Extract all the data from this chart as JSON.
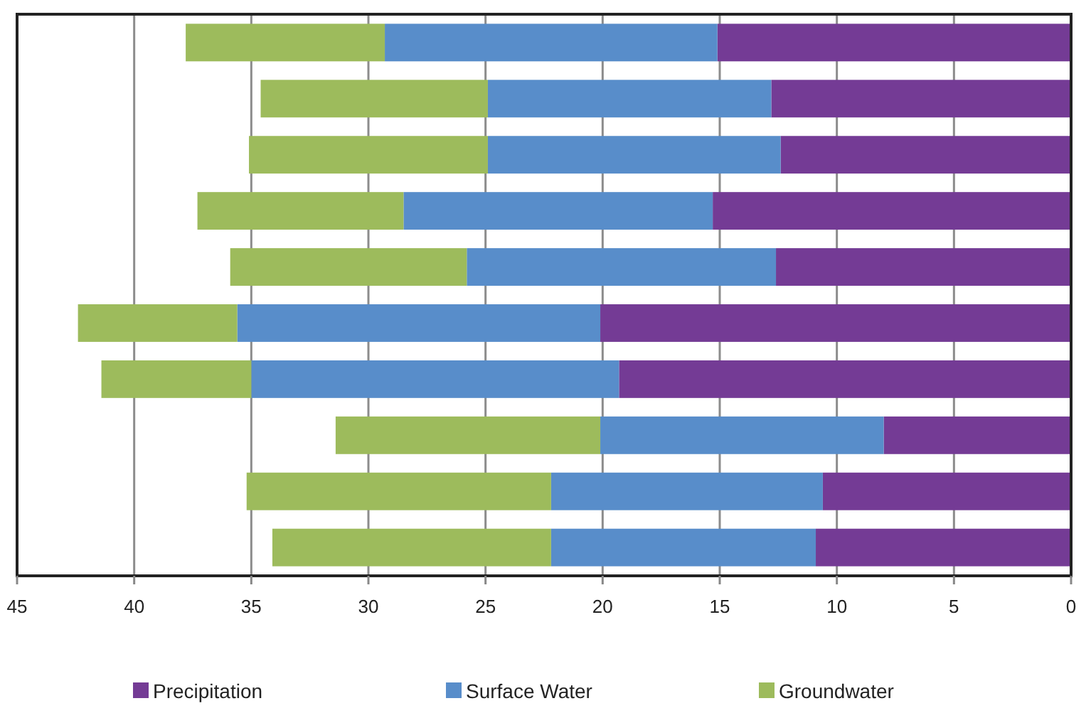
{
  "chart_data": {
    "type": "bar",
    "orientation": "horizontal",
    "stacked": true,
    "categories": [
      null,
      null,
      null,
      null,
      null,
      null,
      null,
      null,
      null,
      null
    ],
    "series": [
      {
        "name": "Precipitation",
        "color": "#743b95",
        "values": [
          15.1,
          12.8,
          12.4,
          15.3,
          12.6,
          20.1,
          19.3,
          8.0,
          10.6,
          10.9
        ]
      },
      {
        "name": "Surface Water",
        "color": "#588dca",
        "values": [
          14.2,
          12.1,
          12.5,
          13.2,
          13.2,
          15.5,
          15.7,
          12.1,
          11.6,
          11.3
        ]
      },
      {
        "name": "Groundwater",
        "color": "#9dbb5c",
        "values": [
          8.5,
          9.7,
          10.2,
          8.8,
          10.1,
          6.8,
          6.4,
          11.3,
          13.0,
          11.9
        ]
      }
    ],
    "xlim": [
      45,
      0
    ],
    "xticks": [
      45,
      40,
      35,
      30,
      25,
      20,
      15,
      10,
      5,
      0
    ],
    "grid": "x",
    "legend": "bottom"
  }
}
